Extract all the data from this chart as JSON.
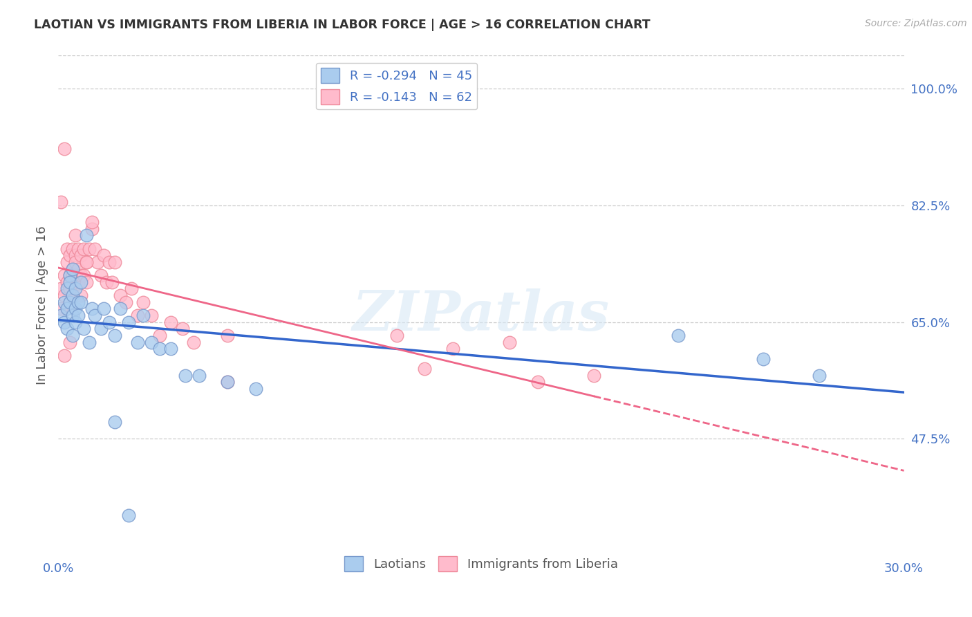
{
  "title": "LAOTIAN VS IMMIGRANTS FROM LIBERIA IN LABOR FORCE | AGE > 16 CORRELATION CHART",
  "source": "Source: ZipAtlas.com",
  "ylabel": "In Labor Force | Age > 16",
  "xlim": [
    0.0,
    0.3
  ],
  "ylim": [
    0.3,
    1.05
  ],
  "yticks_right": [
    0.475,
    0.65,
    0.825,
    1.0
  ],
  "ytick_labels_right": [
    "47.5%",
    "65.0%",
    "82.5%",
    "100.0%"
  ],
  "grid_color": "#cccccc",
  "background_color": "#ffffff",
  "watermark": "ZIPatlas",
  "laotian_color": "#aaccee",
  "liberia_color": "#ffbbcc",
  "laotian_edge": "#7799cc",
  "liberia_edge": "#ee8899",
  "laotian_R": -0.294,
  "laotian_N": 45,
  "liberia_R": -0.143,
  "liberia_N": 62,
  "trend_blue": "#3366cc",
  "trend_pink": "#ee6688",
  "laotian_x": [
    0.001,
    0.002,
    0.002,
    0.003,
    0.003,
    0.003,
    0.004,
    0.004,
    0.004,
    0.005,
    0.005,
    0.005,
    0.005,
    0.006,
    0.006,
    0.006,
    0.007,
    0.007,
    0.008,
    0.008,
    0.009,
    0.01,
    0.011,
    0.012,
    0.013,
    0.015,
    0.016,
    0.018,
    0.02,
    0.022,
    0.025,
    0.028,
    0.03,
    0.033,
    0.036,
    0.04,
    0.045,
    0.05,
    0.06,
    0.07,
    0.02,
    0.025,
    0.22,
    0.25,
    0.27
  ],
  "laotian_y": [
    0.66,
    0.68,
    0.65,
    0.7,
    0.67,
    0.64,
    0.72,
    0.68,
    0.71,
    0.69,
    0.66,
    0.63,
    0.73,
    0.7,
    0.67,
    0.65,
    0.68,
    0.66,
    0.71,
    0.68,
    0.64,
    0.78,
    0.62,
    0.67,
    0.66,
    0.64,
    0.67,
    0.65,
    0.63,
    0.67,
    0.65,
    0.62,
    0.66,
    0.62,
    0.61,
    0.61,
    0.57,
    0.57,
    0.56,
    0.55,
    0.5,
    0.36,
    0.63,
    0.595,
    0.57
  ],
  "liberia_x": [
    0.001,
    0.001,
    0.002,
    0.002,
    0.003,
    0.003,
    0.003,
    0.004,
    0.004,
    0.004,
    0.005,
    0.005,
    0.005,
    0.005,
    0.006,
    0.006,
    0.006,
    0.006,
    0.007,
    0.007,
    0.007,
    0.008,
    0.008,
    0.008,
    0.009,
    0.009,
    0.01,
    0.01,
    0.011,
    0.012,
    0.013,
    0.014,
    0.015,
    0.016,
    0.017,
    0.018,
    0.019,
    0.02,
    0.022,
    0.024,
    0.026,
    0.028,
    0.03,
    0.033,
    0.036,
    0.04,
    0.044,
    0.048,
    0.001,
    0.002,
    0.01,
    0.012,
    0.06,
    0.12,
    0.14,
    0.16,
    0.17,
    0.19,
    0.002,
    0.004,
    0.06,
    0.13
  ],
  "liberia_y": [
    0.7,
    0.67,
    0.72,
    0.69,
    0.74,
    0.71,
    0.76,
    0.72,
    0.75,
    0.7,
    0.73,
    0.76,
    0.72,
    0.69,
    0.75,
    0.72,
    0.78,
    0.74,
    0.76,
    0.73,
    0.71,
    0.75,
    0.72,
    0.69,
    0.76,
    0.72,
    0.74,
    0.71,
    0.76,
    0.79,
    0.76,
    0.74,
    0.72,
    0.75,
    0.71,
    0.74,
    0.71,
    0.74,
    0.69,
    0.68,
    0.7,
    0.66,
    0.68,
    0.66,
    0.63,
    0.65,
    0.64,
    0.62,
    0.83,
    0.91,
    0.74,
    0.8,
    0.63,
    0.63,
    0.61,
    0.62,
    0.56,
    0.57,
    0.6,
    0.62,
    0.56,
    0.58
  ]
}
